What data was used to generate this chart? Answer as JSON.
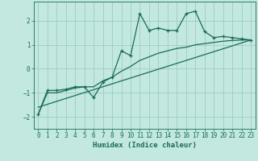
{
  "xlabel": "Humidex (Indice chaleur)",
  "bg_color": "#c2e8e0",
  "line_color": "#1a6b5a",
  "grid_color": "#9eccc4",
  "xlim": [
    -0.5,
    23.5
  ],
  "ylim": [
    -2.5,
    2.8
  ],
  "zigzag_x": [
    0,
    1,
    2,
    3,
    4,
    5,
    6,
    7,
    8,
    9,
    10,
    11,
    12,
    13,
    14,
    15,
    16,
    17,
    18,
    19,
    20,
    21,
    22,
    23
  ],
  "zigzag_y": [
    -1.9,
    -0.9,
    -0.9,
    -0.85,
    -0.75,
    -0.75,
    -1.2,
    -0.55,
    -0.35,
    0.75,
    0.55,
    2.3,
    1.6,
    1.7,
    1.6,
    1.6,
    2.3,
    2.4,
    1.55,
    1.3,
    1.35,
    1.3,
    1.25,
    1.2
  ],
  "trend_x": [
    0,
    23
  ],
  "trend_y": [
    -1.6,
    1.2
  ],
  "smooth_x": [
    0,
    1,
    2,
    3,
    4,
    5,
    6,
    7,
    8,
    9,
    10,
    11,
    12,
    13,
    14,
    15,
    16,
    17,
    18,
    19,
    20,
    21,
    22,
    23
  ],
  "smooth_y": [
    -1.9,
    -1.0,
    -1.0,
    -0.9,
    -0.8,
    -0.75,
    -0.75,
    -0.5,
    -0.35,
    -0.1,
    0.1,
    0.35,
    0.5,
    0.65,
    0.75,
    0.85,
    0.9,
    1.0,
    1.05,
    1.1,
    1.15,
    1.18,
    1.2,
    1.2
  ],
  "yticks": [
    -2,
    -1,
    0,
    1,
    2
  ],
  "xticks": [
    0,
    1,
    2,
    3,
    4,
    5,
    6,
    7,
    8,
    9,
    10,
    11,
    12,
    13,
    14,
    15,
    16,
    17,
    18,
    19,
    20,
    21,
    22,
    23
  ]
}
